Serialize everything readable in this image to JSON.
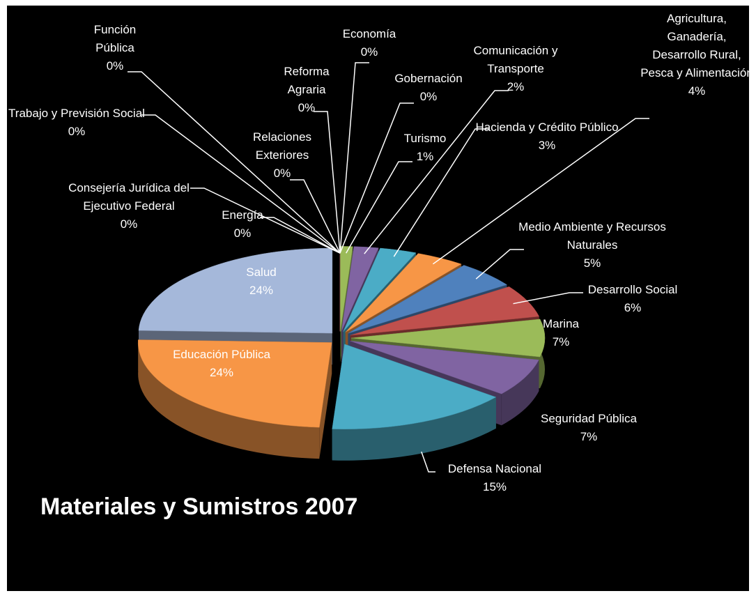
{
  "chart_data": {
    "type": "pie",
    "title": "Materiales y Sumistros 2007",
    "categories": [
      "Consejería Jurídica del Ejecutivo Federal",
      "Trabajo y Previsión Social",
      "Función Pública",
      "Energía",
      "Relaciones Exteriores",
      "Reforma Agraria",
      "Economía",
      "Gobernación",
      "Turismo",
      "Comunicación y Transporte",
      "Hacienda y Crédito Público",
      "Agricultura, Ganadería, Desarrollo Rural, Pesca y Alimentación",
      "Medio Ambiente y Recursos Naturales",
      "Desarrollo Social",
      "Marina",
      "Seguridad Pública",
      "Defensa Nacional",
      "Educación Pública",
      "Salud"
    ],
    "values": [
      0,
      0,
      0,
      0,
      0,
      0,
      0,
      0,
      1,
      2,
      3,
      4,
      5,
      6,
      7,
      7,
      15,
      24,
      24
    ],
    "value_labels": [
      "0%",
      "0%",
      "0%",
      "0%",
      "0%",
      "0%",
      "0%",
      "0%",
      "1%",
      "2%",
      "3%",
      "4%",
      "5%",
      "6%",
      "7%",
      "7%",
      "15%",
      "24%",
      "24%"
    ],
    "colors": [
      "#4f81bd",
      "#c0504d",
      "#9bbb59",
      "#8064a2",
      "#4bacc6",
      "#f79646",
      "#4f81bd",
      "#c0504d",
      "#9bbb59",
      "#8064a2",
      "#4bacc6",
      "#f79646",
      "#4f81bd",
      "#c0504d",
      "#9bbb59",
      "#8064a2",
      "#4bacc6",
      "#f79646",
      "#a5b8da"
    ]
  }
}
